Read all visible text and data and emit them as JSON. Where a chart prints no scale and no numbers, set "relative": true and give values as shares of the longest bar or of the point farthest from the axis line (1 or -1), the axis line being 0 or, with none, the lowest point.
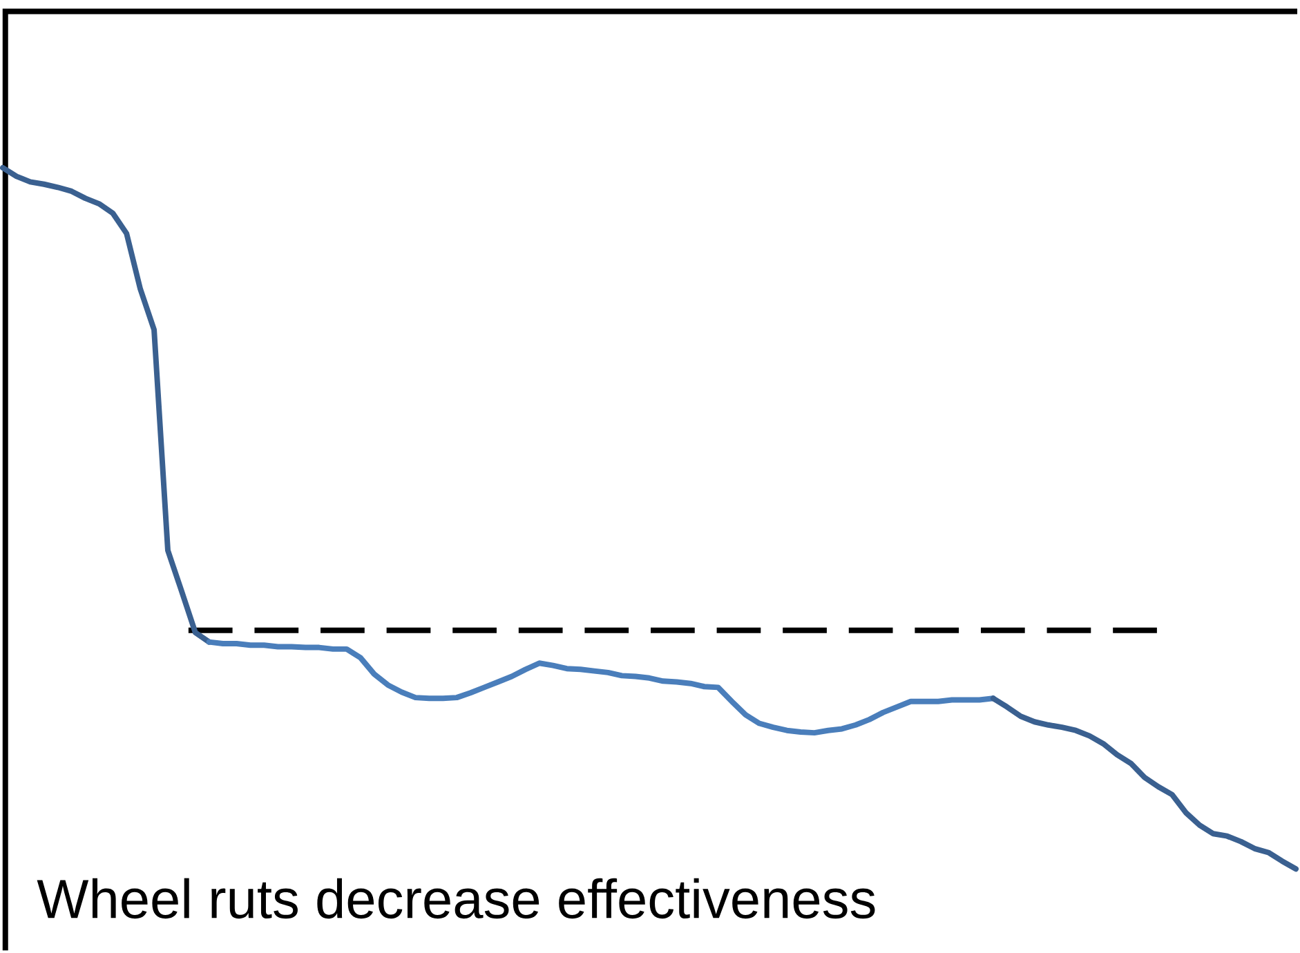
{
  "chart_data": {
    "type": "line",
    "relative": true,
    "categories": [
      null,
      null,
      null,
      null,
      null,
      null,
      null,
      null,
      null,
      null,
      null,
      null,
      null,
      null,
      null,
      null,
      null,
      null,
      null,
      null,
      null,
      null,
      null,
      null,
      null,
      null,
      null,
      null,
      null,
      null,
      null,
      null,
      null,
      null,
      null,
      null,
      null,
      null,
      null,
      null,
      null,
      null,
      null,
      null,
      null,
      null,
      null,
      null,
      null,
      null,
      null,
      null,
      null,
      null,
      null,
      null,
      null,
      null,
      null,
      null,
      null,
      null,
      null,
      null,
      null,
      null,
      null,
      null,
      null,
      null,
      null,
      null,
      null,
      null,
      null,
      null,
      null,
      null,
      null,
      null,
      null,
      null,
      null,
      null,
      null,
      null,
      null,
      null,
      null,
      null,
      null,
      null,
      null,
      null,
      null
    ],
    "series": [
      {
        "color": "#3a6090",
        "values": [
          1.0,
          0.989,
          0.982,
          0.979,
          0.975,
          0.97,
          0.961,
          0.954,
          0.942,
          0.916,
          0.845,
          0.793,
          0.511,
          0.459,
          0.406,
          0.394,
          null,
          null,
          null,
          null,
          null,
          null,
          null,
          null,
          null,
          null,
          null,
          null,
          null,
          null,
          null,
          null,
          null,
          null,
          null,
          null,
          null,
          null,
          null,
          null,
          null,
          null,
          null,
          null,
          null,
          null,
          null,
          null,
          null,
          null,
          null,
          null,
          null,
          null,
          null,
          null,
          null,
          null,
          null,
          null,
          null,
          null,
          null,
          null,
          null,
          null,
          null,
          null,
          null,
          null,
          null,
          null,
          null,
          null,
          null,
          null,
          null,
          null,
          null,
          null,
          null,
          null,
          null,
          null,
          null,
          null,
          null,
          null,
          null,
          null,
          null,
          null,
          null,
          null,
          null
        ]
      },
      {
        "color": "#4a7ebb",
        "values": [
          null,
          null,
          null,
          null,
          null,
          null,
          null,
          null,
          null,
          null,
          null,
          null,
          null,
          null,
          null,
          0.394,
          0.392,
          0.392,
          0.39,
          0.39,
          0.388,
          0.388,
          0.387,
          0.387,
          0.385,
          0.385,
          0.374,
          0.353,
          0.339,
          0.33,
          0.323,
          0.322,
          0.322,
          0.323,
          0.329,
          0.336,
          0.343,
          0.35,
          0.359,
          0.367,
          0.364,
          0.36,
          0.359,
          0.357,
          0.355,
          0.351,
          0.35,
          0.348,
          0.344,
          0.343,
          0.341,
          0.337,
          0.336,
          0.318,
          0.301,
          0.29,
          0.285,
          0.281,
          0.279,
          0.278,
          0.281,
          0.283,
          0.288,
          0.295,
          0.304,
          0.311,
          0.318,
          0.318,
          0.318,
          0.32,
          0.32,
          0.32,
          0.322,
          null,
          null,
          null,
          null,
          null,
          null,
          null,
          null,
          null,
          null,
          null,
          null,
          null,
          null,
          null,
          null,
          null,
          null,
          null,
          null,
          null,
          null
        ]
      },
      {
        "color": "#3a6090",
        "values": [
          null,
          null,
          null,
          null,
          null,
          null,
          null,
          null,
          null,
          null,
          null,
          null,
          null,
          null,
          null,
          null,
          null,
          null,
          null,
          null,
          null,
          null,
          null,
          null,
          null,
          null,
          null,
          null,
          null,
          null,
          null,
          null,
          null,
          null,
          null,
          null,
          null,
          null,
          null,
          null,
          null,
          null,
          null,
          null,
          null,
          null,
          null,
          null,
          null,
          null,
          null,
          null,
          null,
          null,
          null,
          null,
          null,
          null,
          null,
          null,
          null,
          null,
          null,
          null,
          null,
          null,
          null,
          null,
          null,
          null,
          null,
          null,
          0.322,
          0.311,
          0.299,
          0.292,
          0.288,
          0.285,
          0.281,
          0.274,
          0.264,
          0.25,
          0.239,
          0.221,
          0.209,
          0.199,
          0.176,
          0.16,
          0.149,
          0.146,
          0.139,
          0.13,
          0.125,
          0.114,
          0.104
        ]
      }
    ],
    "ref_lines": [
      {
        "axis": "y",
        "value": 0.409,
        "color": "#000000",
        "line_style": "dashed"
      }
    ],
    "annotations": [
      "Wheel ruts decrease effectiveness"
    ]
  }
}
